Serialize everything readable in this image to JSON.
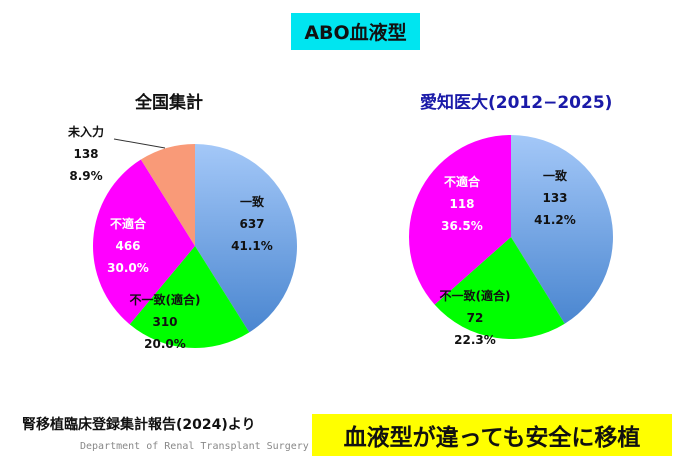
{
  "title": "ABO血液型",
  "source_note": "腎移植臨床登録集計報告(2024)より",
  "department": "Department of Renal Transplant Surgery",
  "highlight": "血液型が違っても安全に移植",
  "colors": {
    "title_bg": "#00e5f0",
    "highlight_bg": "#ffff00",
    "match": "#8fb8ee",
    "mismatch_compatible": "#00ff00",
    "incompatible": "#ff00ff",
    "unknown": "#f99a78",
    "aichi_title": "#1a1aa8"
  },
  "chart_data": [
    {
      "type": "pie",
      "title": "全国集計",
      "slices": [
        {
          "label": "一致",
          "value": 637,
          "percent": "41.1%"
        },
        {
          "label": "不一致(適合)",
          "value": 310,
          "percent": "20.0%"
        },
        {
          "label": "不適合",
          "value": 466,
          "percent": "30.0%"
        },
        {
          "label": "未入力",
          "value": 138,
          "percent": "8.9%"
        }
      ]
    },
    {
      "type": "pie",
      "title": "愛知医大(2012−2025)",
      "slices": [
        {
          "label": "一致",
          "value": 133,
          "percent": "41.2%"
        },
        {
          "label": "不一致(適合)",
          "value": 72,
          "percent": "22.3%"
        },
        {
          "label": "不適合",
          "value": 118,
          "percent": "36.5%"
        }
      ]
    }
  ]
}
